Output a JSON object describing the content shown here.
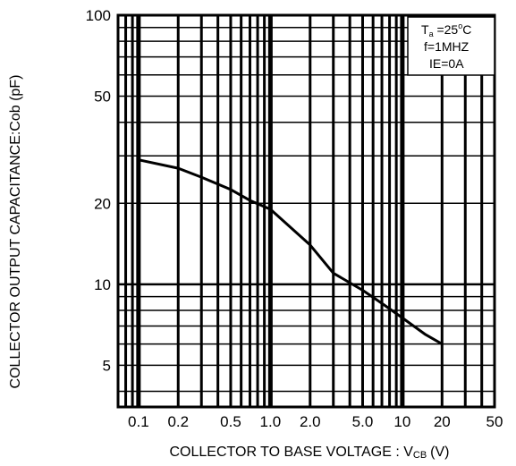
{
  "chart_data": {
    "type": "line",
    "title": "",
    "xlabel": "COLLECTOR TO BASE VOLTAGE : V",
    "xlabel_sub": "CB",
    "xlabel_unit": "(V)",
    "ylabel": "COLLECTOR OUTPUT CAPACITANCE:Cob (pF)",
    "x_scale": "log",
    "y_scale": "log",
    "xlim": [
      0.07,
      50
    ],
    "ylim": [
      3.5,
      100
    ],
    "x_ticks": [
      {
        "value": 0.1,
        "label": "0.1"
      },
      {
        "value": 0.2,
        "label": "0.2"
      },
      {
        "value": 0.5,
        "label": "0.5"
      },
      {
        "value": 1,
        "label": "1.0"
      },
      {
        "value": 2,
        "label": "2.0"
      },
      {
        "value": 5,
        "label": "5.0"
      },
      {
        "value": 10,
        "label": "10"
      },
      {
        "value": 20,
        "label": "20"
      },
      {
        "value": 50,
        "label": "50"
      }
    ],
    "y_ticks": [
      {
        "value": 5,
        "label": "5"
      },
      {
        "value": 10,
        "label": "10"
      },
      {
        "value": 20,
        "label": "20"
      },
      {
        "value": 50,
        "label": "50"
      },
      {
        "value": 100,
        "label": "100"
      }
    ],
    "grid": true,
    "conditions": {
      "line1_main": "T",
      "line1_sub": "a",
      "line1_rest": " =25",
      "line1_deg": "o",
      "line1_unit": "C",
      "line2": "f=1MHZ",
      "line3": "IE=0A"
    },
    "legend_position": "top-right",
    "series": [
      {
        "color": "#000000",
        "x": [
          0.1,
          0.2,
          0.3,
          0.5,
          0.7,
          1,
          2,
          3,
          5,
          7,
          10,
          15,
          20
        ],
        "y": [
          29,
          27,
          25,
          22.5,
          20.5,
          19,
          14,
          11,
          9.5,
          8.5,
          7.5,
          6.5,
          6
        ]
      }
    ]
  }
}
